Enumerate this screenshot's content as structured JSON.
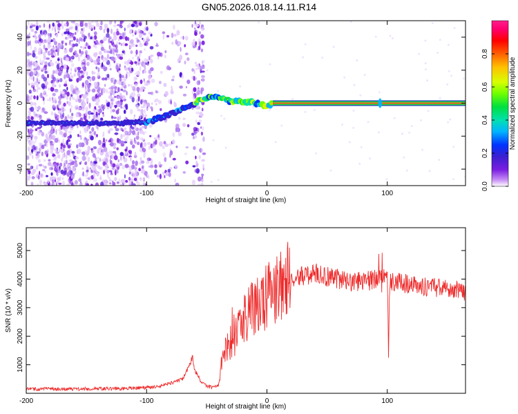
{
  "figure_title": "GN05.2026.018.14.11.R14",
  "colors": {
    "spectrogram_ridge": "#27c64c",
    "snr_line": "#ee2b2b",
    "speckle": "#6a2bd9",
    "colormap": [
      "#ffffff",
      "#c58cf5",
      "#7a1fe0",
      "#3a1fd0",
      "#0033ff",
      "#00b4ff",
      "#00e0b0",
      "#00e040",
      "#70ff00",
      "#d8ff00",
      "#ffc000",
      "#ff6000",
      "#ff0000",
      "#ff0070",
      "#ff1e8a"
    ]
  },
  "chart_data": [
    {
      "type": "heatmap",
      "title": "",
      "xlabel": "Height of straight line (km)",
      "ylabel": "Frequency (Hz)",
      "xlim": [
        -200,
        165
      ],
      "ylim": [
        -50,
        50
      ],
      "xticks": [
        -200,
        -100,
        0,
        100
      ],
      "yticks": [
        -40,
        -20,
        0,
        20,
        40
      ],
      "colorbar": {
        "label": "Normalized spectral amplitude",
        "range": [
          0,
          1
        ],
        "ticks": [
          "0.0",
          "0.2",
          "0.4",
          "0.6",
          "0.8"
        ]
      },
      "ridge": {
        "x": [
          -200,
          -180,
          -160,
          -140,
          -120,
          -100,
          -85,
          -75,
          -65,
          -55,
          -45,
          -38,
          -30,
          -20,
          -10,
          -5,
          0,
          5,
          10,
          30,
          60,
          92,
          95,
          100,
          130,
          165
        ],
        "frequency": [
          -12,
          -12,
          -12,
          -12,
          -12,
          -11.5,
          -8,
          -5,
          -2,
          2,
          4,
          3.5,
          1,
          1,
          0,
          -1,
          -2,
          0,
          0,
          0,
          0,
          0,
          1,
          0,
          0,
          0
        ]
      }
    },
    {
      "type": "line",
      "title": "",
      "xlabel": "Height of straight line (km)",
      "ylabel": "SNR (10 * v/v)",
      "xlim": [
        -200,
        165
      ],
      "ylim": [
        0,
        5800
      ],
      "xticks": [
        -200,
        -100,
        0,
        100
      ],
      "yticks": [
        1000,
        2000,
        3000,
        4000,
        5000
      ],
      "series": [
        {
          "name": "SNR",
          "x": [
            -200,
            -180,
            -160,
            -140,
            -120,
            -100,
            -90,
            -80,
            -70,
            -65,
            -62,
            -60,
            -57,
            -55,
            -50,
            -45,
            -40,
            -38,
            -35,
            -30,
            -25,
            -20,
            -15,
            -10,
            -5,
            0,
            5,
            10,
            15,
            20,
            25,
            30,
            40,
            50,
            60,
            70,
            80,
            90,
            95,
            100,
            101,
            102,
            105,
            110,
            120,
            130,
            140,
            150,
            160,
            165
          ],
          "y": [
            150,
            150,
            150,
            160,
            170,
            200,
            250,
            350,
            500,
            900,
            1300,
            800,
            600,
            400,
            250,
            200,
            300,
            1000,
            1500,
            1800,
            2000,
            2500,
            2800,
            3000,
            3200,
            3400,
            3600,
            3800,
            3900,
            4000,
            4050,
            4100,
            4200,
            4100,
            4000,
            3900,
            3900,
            4000,
            4100,
            4300,
            1300,
            3800,
            3950,
            3900,
            3800,
            3750,
            3700,
            3700,
            3600,
            3500
          ]
        }
      ]
    }
  ]
}
